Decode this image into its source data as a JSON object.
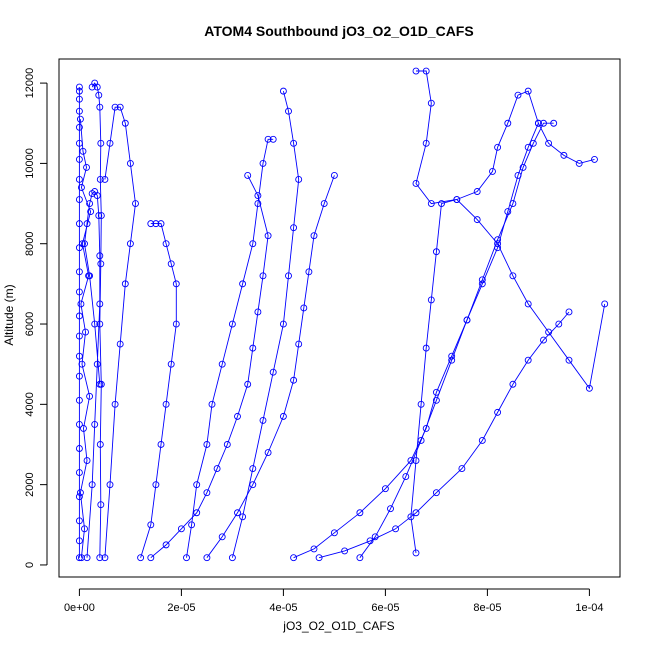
{
  "chart_data": {
    "type": "scatter",
    "title": "ATOM4 Southbound jO3_O2_O1D_CAFS",
    "xlabel": "jO3_O2_O1D_CAFS",
    "ylabel": "Altitude (m)",
    "xlim": [
      -4e-06,
      0.000106
    ],
    "ylim": [
      -300,
      12600
    ],
    "x_ticks": [
      0,
      2e-05,
      4e-05,
      6e-05,
      8e-05,
      0.0001
    ],
    "x_tick_labels": [
      "0e+00",
      "2e-05",
      "4e-05",
      "6e-05",
      "8e-05",
      "1e-04"
    ],
    "y_ticks": [
      0,
      2000,
      4000,
      6000,
      8000,
      10000,
      12000
    ],
    "y_tick_labels": [
      "0",
      "2000",
      "4000",
      "6000",
      "8000",
      "10000",
      "12000"
    ],
    "color": "#0000ff",
    "grid": false,
    "legend": "none",
    "series": [
      {
        "x": [
          0,
          0,
          0,
          0,
          0,
          0,
          0,
          0,
          0,
          0,
          0,
          0,
          0,
          0,
          0,
          0,
          0,
          0,
          0,
          0,
          0,
          0,
          0,
          0,
          0
        ],
        "y": [
          180,
          600,
          1100,
          1700,
          2300,
          2900,
          3500,
          4100,
          4700,
          5200,
          5700,
          6200,
          6800,
          7300,
          7900,
          8500,
          9100,
          9600,
          10100,
          10500,
          10900,
          11300,
          11600,
          11800,
          11900
        ]
      },
      {
        "x": [
          4e-07,
          1e-06,
          2e-07,
          1.5e-06,
          8e-07,
          2e-06,
          5e-07,
          1.2e-06,
          3e-07,
          1.8e-06,
          6e-07,
          2.2e-06,
          4e-07,
          1.4e-06,
          7e-07,
          2e-07
        ],
        "y": [
          180,
          900,
          1800,
          2600,
          3400,
          4200,
          5000,
          5800,
          6500,
          7200,
          8000,
          8800,
          9400,
          9900,
          10300,
          11100
        ]
      },
      {
        "x": [
          1.5e-06,
          2.5e-06,
          3e-06,
          3.5e-06,
          4e-06,
          4e-06,
          3.8e-06,
          3.5e-06,
          3e-06,
          2.5e-06,
          2e-06,
          1.5e-06,
          1e-06,
          2e-06,
          3e-06,
          4e-06
        ],
        "y": [
          180,
          2000,
          3500,
          5000,
          6500,
          7700,
          8700,
          9200,
          9300,
          9250,
          9000,
          8500,
          8000,
          7200,
          6000,
          4500
        ]
      },
      {
        "x": [
          4e-06,
          4.2e-06,
          4.1e-06,
          4.3e-06,
          4e-06,
          4.2e-06,
          4.3e-06,
          4.1e-06,
          4.2e-06,
          4e-06,
          3.8e-06,
          3.5e-06,
          3e-06,
          2.5e-06
        ],
        "y": [
          180,
          1500,
          3000,
          4500,
          6000,
          7500,
          8700,
          9600,
          10500,
          11400,
          11700,
          11900,
          12000,
          11900
        ]
      },
      {
        "x": [
          5e-06,
          6e-06,
          7e-06,
          8e-06,
          9e-06,
          1e-05,
          1.1e-05,
          1e-05,
          9e-06,
          8e-06,
          7e-06,
          6e-06,
          5e-06
        ],
        "y": [
          180,
          2000,
          4000,
          5500,
          7000,
          8000,
          9000,
          10000,
          11000,
          11400,
          11400,
          10500,
          9600
        ]
      },
      {
        "x": [
          1.2e-05,
          1.4e-05,
          1.5e-05,
          1.6e-05,
          1.7e-05,
          1.8e-05,
          1.9e-05,
          1.9e-05,
          1.8e-05,
          1.7e-05,
          1.6e-05,
          1.5e-05,
          1.4e-05
        ],
        "y": [
          180,
          1000,
          2000,
          3000,
          4000,
          5000,
          6000,
          7000,
          7500,
          8000,
          8500,
          8500,
          8500
        ]
      },
      {
        "x": [
          1.4e-05,
          1.7e-05,
          2e-05,
          2.3e-05,
          2.5e-05,
          2.7e-05,
          2.9e-05,
          3.1e-05,
          3.3e-05,
          3.4e-05,
          3.5e-05,
          3.6e-05,
          3.7e-05,
          3.5e-05,
          3.3e-05
        ],
        "y": [
          180,
          500,
          900,
          1300,
          1800,
          2400,
          3000,
          3700,
          4500,
          5400,
          6300,
          7200,
          8200,
          9200,
          9700
        ]
      },
      {
        "x": [
          2.1e-05,
          2.2e-05,
          2.3e-05,
          2.5e-05,
          2.6e-05,
          2.8e-05,
          3e-05,
          3.2e-05,
          3.4e-05,
          3.5e-05,
          3.6e-05,
          3.7e-05,
          3.8e-05
        ],
        "y": [
          180,
          1000,
          2000,
          3000,
          4000,
          5000,
          6000,
          7000,
          8000,
          9000,
          10000,
          10600,
          10600
        ]
      },
      {
        "x": [
          2.5e-05,
          2.8e-05,
          3.1e-05,
          3.4e-05,
          3.7e-05,
          4e-05,
          4.2e-05,
          4.3e-05,
          4.4e-05,
          4.5e-05,
          4.6e-05,
          4.8e-05,
          5e-05
        ],
        "y": [
          180,
          700,
          1300,
          2000,
          2800,
          3700,
          4600,
          5500,
          6400,
          7300,
          8200,
          9000,
          9700
        ]
      },
      {
        "x": [
          3e-05,
          3.2e-05,
          3.4e-05,
          3.6e-05,
          3.8e-05,
          4e-05,
          4.1e-05,
          4.2e-05,
          4.3e-05,
          4.2e-05,
          4.1e-05,
          4e-05
        ],
        "y": [
          180,
          1200,
          2400,
          3600,
          4800,
          6000,
          7200,
          8400,
          9600,
          10500,
          11300,
          11800
        ]
      },
      {
        "x": [
          4.2e-05,
          4.6e-05,
          5e-05,
          5.5e-05,
          6e-05,
          6.5e-05,
          6.8e-05,
          7e-05,
          7.3e-05,
          7.6e-05,
          7.9e-05,
          8.2e-05,
          8.4e-05,
          8.6e-05,
          8.8e-05,
          9e-05
        ],
        "y": [
          180,
          400,
          800,
          1300,
          1900,
          2600,
          3400,
          4300,
          5200,
          6100,
          7000,
          7900,
          8800,
          9700,
          10400,
          11000
        ]
      },
      {
        "x": [
          5.5e-05,
          5.8e-05,
          6.1e-05,
          6.4e-05,
          6.7e-05,
          7e-05,
          7.3e-05,
          7.6e-05,
          7.9e-05,
          8.2e-05,
          8.5e-05,
          8.7e-05,
          8.9e-05,
          9.1e-05,
          9.3e-05
        ],
        "y": [
          180,
          700,
          1400,
          2200,
          3100,
          4100,
          5100,
          6100,
          7100,
          8100,
          9000,
          9900,
          10500,
          11000,
          11000
        ]
      },
      {
        "x": [
          6.6e-05,
          6.5e-05,
          6.6e-05,
          6.7e-05,
          6.8e-05,
          6.9e-05,
          7e-05,
          7.1e-05,
          7.4e-05,
          7.8e-05,
          8.2e-05,
          8.5e-05,
          8.8e-05,
          9.2e-05,
          9.6e-05,
          0.0001,
          0.000103
        ],
        "y": [
          300,
          1200,
          2600,
          4000,
          5400,
          6600,
          7800,
          9000,
          9100,
          8600,
          8000,
          7200,
          6500,
          5800,
          5100,
          4400,
          6500
        ]
      },
      {
        "x": [
          6.6e-05,
          6.8e-05,
          6.9e-05,
          6.8e-05,
          6.6e-05,
          6.9e-05,
          7.4e-05,
          7.8e-05,
          8.1e-05,
          8.2e-05,
          8.4e-05,
          8.6e-05,
          8.8e-05,
          9e-05,
          9.2e-05,
          9.5e-05,
          9.8e-05,
          0.000101
        ],
        "y": [
          12300,
          12300,
          11500,
          10500,
          9500,
          9000,
          9100,
          9300,
          9800,
          10400,
          11000,
          11700,
          11800,
          11000,
          10500,
          10200,
          10000,
          10100
        ]
      },
      {
        "x": [
          4.7e-05,
          5.2e-05,
          5.7e-05,
          6.2e-05,
          6.6e-05,
          7e-05,
          7.5e-05,
          7.9e-05,
          8.2e-05,
          8.5e-05,
          8.8e-05,
          9.1e-05,
          9.4e-05,
          9.6e-05
        ],
        "y": [
          180,
          350,
          600,
          900,
          1300,
          1800,
          2400,
          3100,
          3800,
          4500,
          5100,
          5600,
          6000,
          6300
        ]
      }
    ]
  }
}
